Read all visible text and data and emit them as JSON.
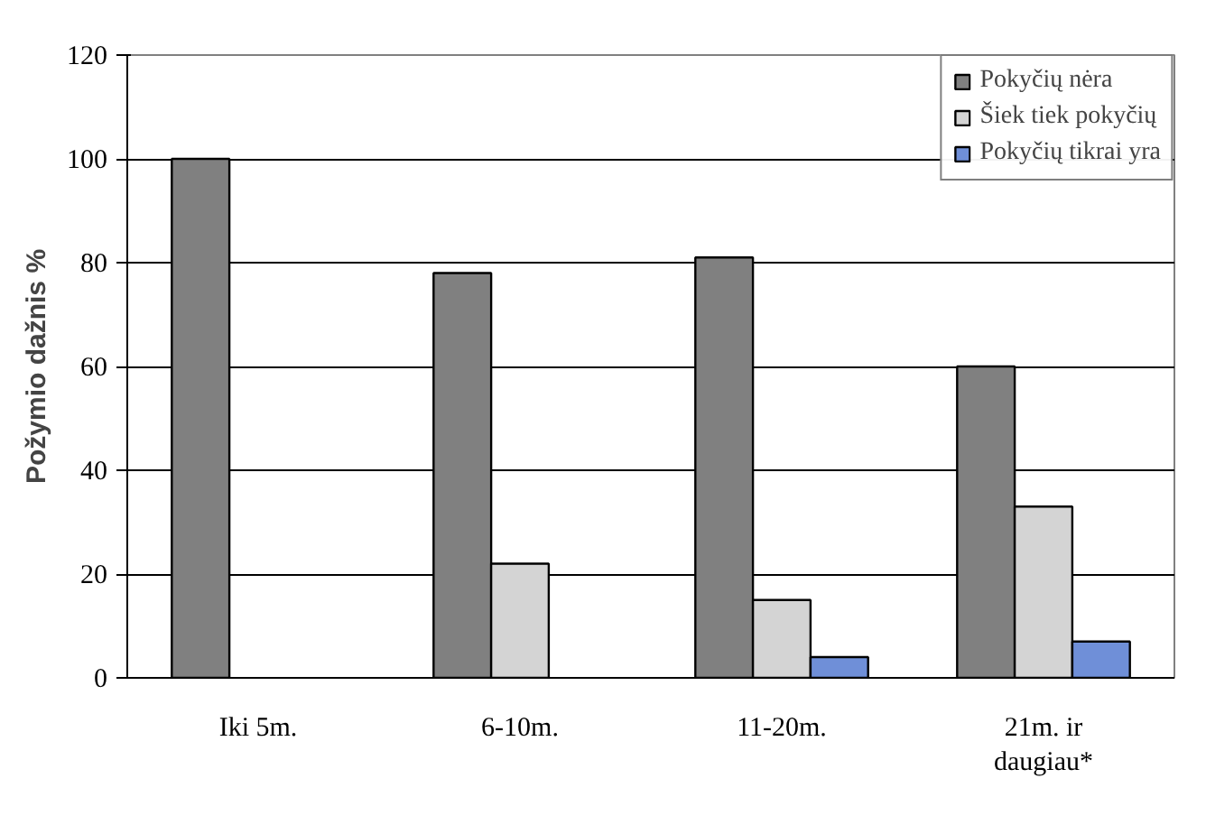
{
  "chart_data": {
    "type": "bar",
    "ylabel": "Požymio dažnis %",
    "categories": [
      "Iki 5m.",
      "6-10m.",
      "11-20m.",
      "21m. ir daugiau*"
    ],
    "series": [
      {
        "name": "Pokyčių nėra",
        "color": "#808080",
        "values": [
          100,
          78,
          81,
          60
        ]
      },
      {
        "name": "Šiek tiek pokyčių",
        "color": "#d4d4d4",
        "values": [
          null,
          22,
          15,
          33
        ]
      },
      {
        "name": "Pokyčių tikrai yra",
        "color": "#6f8fd8",
        "values": [
          null,
          null,
          4,
          7
        ]
      }
    ],
    "ylim": [
      0,
      120
    ],
    "yticks": [
      0,
      20,
      40,
      60,
      80,
      100,
      120
    ],
    "grid": "y",
    "legend": "top right"
  }
}
